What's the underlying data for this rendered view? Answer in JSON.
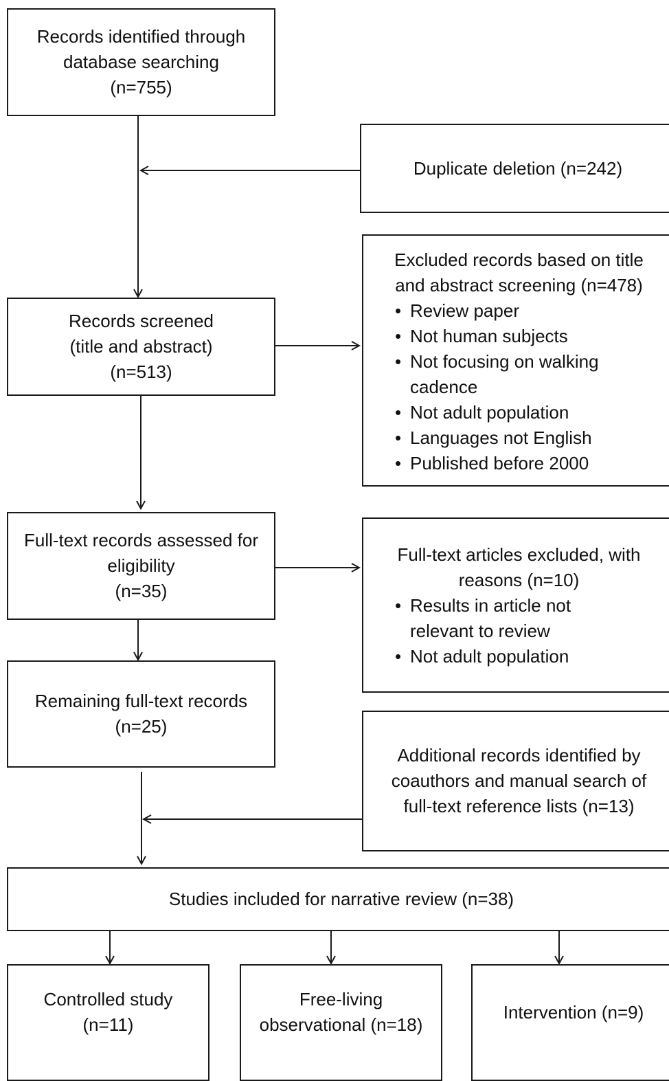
{
  "identification": {
    "line1": "Records identified through",
    "line2": "database searching",
    "count": "(n=755)"
  },
  "duplicates": {
    "label": "Duplicate deletion (n=242)"
  },
  "excluded_title": {
    "line1": "Excluded records based on title",
    "line2": "and abstract screening (n=478)",
    "reasons": [
      "Review paper",
      "Not human subjects",
      "Not focusing on walking cadence",
      "Not adult population",
      "Languages not English",
      "Published before 2000"
    ]
  },
  "screened": {
    "line1": "Records screened",
    "line2": "(title and abstract)",
    "count": "(n=513)"
  },
  "fulltext": {
    "line1": "Full-text records assessed for",
    "line2": "eligibility",
    "count": "(n=35)"
  },
  "fulltext_excluded": {
    "line1": "Full-text articles excluded, with",
    "line2": "reasons (n=10)",
    "reasons": [
      "Results in article not relevant to review",
      "Not adult population"
    ]
  },
  "remaining": {
    "line1": "Remaining full-text records",
    "count": "(n=25)"
  },
  "additional": {
    "line1": "Additional records identified by",
    "line2": "coauthors and manual search of",
    "line3": "full-text reference lists (n=13)"
  },
  "included": {
    "label": "Studies included for narrative review (n=38)"
  },
  "controlled": {
    "line1": "Controlled study",
    "line2": "(n=11)"
  },
  "freeliving": {
    "line1": "Free-living",
    "line2": "observational (n=18)"
  },
  "intervention": {
    "label": "Intervention (n=9)"
  }
}
